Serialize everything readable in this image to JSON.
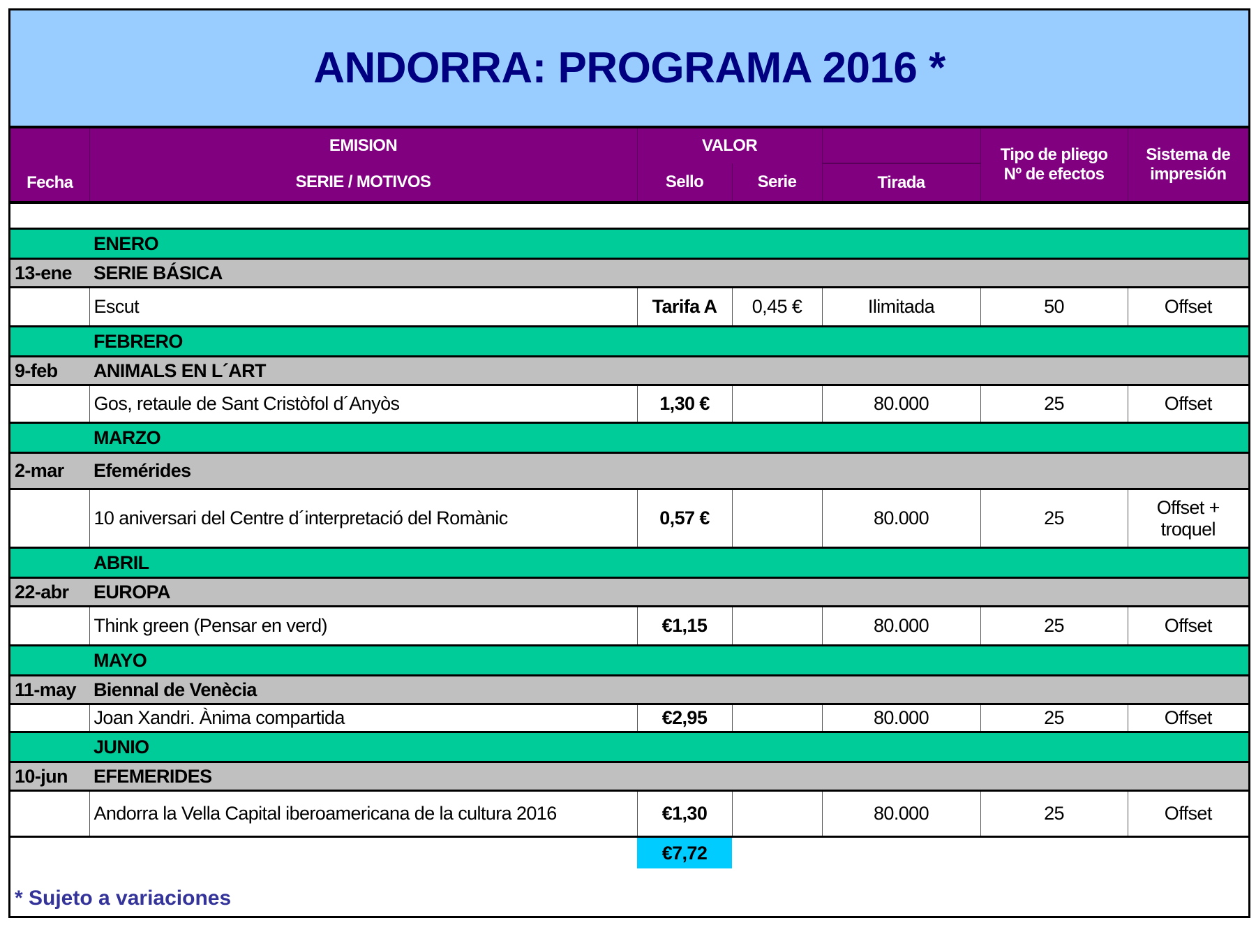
{
  "title": "ANDORRA: PROGRAMA 2016 *",
  "headers": {
    "fecha": "Fecha",
    "emision": "EMISION",
    "serie_motivos": "SERIE / MOTIVOS",
    "valor": "VALOR",
    "sello": "Sello",
    "serie": "Serie",
    "tirada": "Tirada",
    "tipo_pliego": "Tipo de pliego",
    "n_efectos": "Nº de efectos",
    "sistema": "Sistema de",
    "impresion": "impresión"
  },
  "months": [
    {
      "month": "ENERO",
      "date": "13-ene",
      "series": "SERIE BÁSICA",
      "motivo": "Escut",
      "sello": "Tarifa A",
      "serie": "0,45 €",
      "tirada": "Ilimitada",
      "efectos": "50",
      "impresion": "Offset"
    },
    {
      "month": "FEBRERO",
      "date": "9-feb",
      "series": "ANIMALS EN L´ART",
      "motivo": "Gos, retaule de Sant Cristòfol d´Anyòs",
      "sello": "1,30 €",
      "serie": "",
      "tirada": "80.000",
      "efectos": "25",
      "impresion": "Offset"
    },
    {
      "month": "MARZO",
      "date": "2-mar",
      "series": "Efemérides",
      "motivo": "10 aniversari del Centre d´interpretació del Romànic",
      "sello": "0,57 €",
      "serie": "",
      "tirada": "80.000",
      "efectos": "25",
      "impresion": "Offset +",
      "impresion2": "troquel"
    },
    {
      "month": "ABRIL",
      "date": "22-abr",
      "series": "EUROPA",
      "motivo": "Think green (Pensar en verd)",
      "sello": "€1,15",
      "serie": "",
      "tirada": "80.000",
      "efectos": "25",
      "impresion": "Offset"
    },
    {
      "month": "MAYO",
      "date": "11-may",
      "series": "Biennal de Venècia",
      "motivo": "Joan Xandri. Ànima compartida",
      "sello": "€2,95",
      "serie": "",
      "tirada": "80.000",
      "efectos": "25",
      "impresion": "Offset"
    },
    {
      "month": "JUNIO",
      "date": "10-jun",
      "series": "EFEMERIDES",
      "motivo": "Andorra la Vella Capital iberoamericana de la cultura 2016",
      "sello": "€1,30",
      "serie": "",
      "tirada": "80.000",
      "efectos": "25",
      "impresion": "Offset"
    }
  ],
  "total": "€7,72",
  "footnote": "* Sujeto a variaciones",
  "colors": {
    "title_bg": "#99ccff",
    "header_bg": "#800080",
    "month_bg": "#00cc99",
    "series_bg": "#c0c0c0",
    "total_bg": "#00ccff",
    "title_text": "#000080"
  }
}
